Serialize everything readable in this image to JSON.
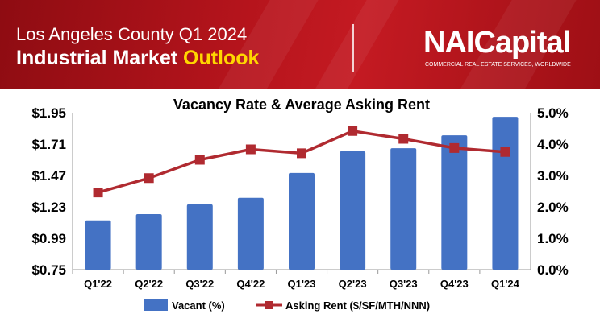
{
  "header": {
    "line1": "Los Angeles County Q1 2024",
    "line2_a": "Industrial Market ",
    "line2_b": "Outlook",
    "logo": "NAICapital",
    "tagline": "COMMERCIAL REAL ESTATE SERVICES, WORLDWIDE"
  },
  "colors": {
    "bar": "#4472c4",
    "line": "#b02a30"
  },
  "chart_data": {
    "type": "bar+line",
    "title": "Vacancy Rate & Average Asking Rent",
    "categories": [
      "Q1'22",
      "Q2'22",
      "Q3'22",
      "Q4'22",
      "Q1'23",
      "Q2'23",
      "Q3'23",
      "Q4'23",
      "Q1'24"
    ],
    "series": [
      {
        "name": "Vacant (%)",
        "type": "bar",
        "axis": "right",
        "values": [
          1.57,
          1.77,
          2.08,
          2.29,
          3.08,
          3.77,
          3.87,
          4.28,
          4.87
        ]
      },
      {
        "name": "Asking Rent ($/SF/MTH/NNN)",
        "type": "line",
        "axis": "left",
        "values": [
          1.34,
          1.45,
          1.59,
          1.67,
          1.64,
          1.81,
          1.75,
          1.68,
          1.65
        ]
      }
    ],
    "left_axis": {
      "ticks": [
        "$0.75",
        "$0.99",
        "$1.23",
        "$1.47",
        "$1.71",
        "$1.95"
      ],
      "range": [
        0.75,
        1.95
      ]
    },
    "right_axis": {
      "ticks": [
        "0.0%",
        "1.0%",
        "2.0%",
        "3.0%",
        "4.0%",
        "5.0%"
      ],
      "range": [
        0,
        5
      ]
    },
    "legend": "bottom"
  }
}
